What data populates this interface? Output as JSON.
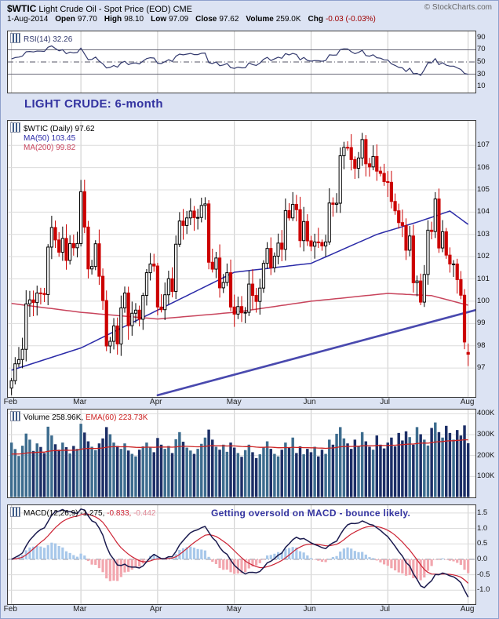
{
  "header": {
    "symbol": "$WTIC",
    "title": "Light Crude Oil - Spot Price (EOD) CME",
    "copyright": "© StockCharts.com",
    "date": "1-Aug-2014",
    "quote": [
      {
        "label": "Open",
        "value": "97.70"
      },
      {
        "label": "High",
        "value": "98.10"
      },
      {
        "label": "Low",
        "value": "97.09"
      },
      {
        "label": "Close",
        "value": "97.62"
      },
      {
        "label": "Volume",
        "value": "259.0K"
      },
      {
        "label": "Chg",
        "value": "-0.03 (-0.03%)",
        "color": "#a00000"
      }
    ]
  },
  "annotations": {
    "title_note": "LIGHT CRUDE: 6-month",
    "macd_note": "Getting oversold on MACD - bounce likely.",
    "color": "#3333a0"
  },
  "panels": {
    "rsi": {
      "legend": "RSI(14) 32.26"
    },
    "price": {
      "legend_symbol": "$WTIC (Daily) 97.62",
      "legend_ma50": "MA(50) 103.45",
      "legend_ma200": "MA(200) 99.82"
    },
    "volume": {
      "legend_vol": "Volume 258.96K,",
      "legend_ema": "EMA(60) 223.73K"
    },
    "macd": {
      "legend": "MACD(12,26,9)",
      "v1": "-1.275,",
      "v2": "-0.833,",
      "v3": "-0.442"
    }
  },
  "months": [
    {
      "label": "Feb",
      "index": 0
    },
    {
      "label": "Mar",
      "index": 19
    },
    {
      "label": "Apr",
      "index": 40
    },
    {
      "label": "May",
      "index": 61
    },
    {
      "label": "Jun",
      "index": 82
    },
    {
      "label": "Jul",
      "index": 103
    },
    {
      "label": "Aug",
      "index": 125
    }
  ],
  "colors": {
    "bg": "#dce3f3",
    "note": "#3333a0",
    "candle_up_stroke": "#000000",
    "candle_up_fill": "#ffffff",
    "candle_down": "#cc0000",
    "ma50": "#2b2ba8",
    "ma200": "#c8445c",
    "trendline": "#4949ae",
    "volume_up": "#3d6c8e",
    "volume_down": "#1c2e66",
    "vol_ema": "#cc2222",
    "macd_line": "#1a1a4e",
    "macd_signal": "#cc2233",
    "hist_pos": "#a8c8ea",
    "hist_neg": "#f2a6ae",
    "rsi_line": "#333a6e",
    "grid": "#dcdcdc",
    "month_grid": "#c9c9c9",
    "level_line": "#555566"
  },
  "chart_data": [
    {
      "name": "rsi",
      "type": "line",
      "params": "RSI(14)",
      "last_value": 32.26,
      "range": [
        0,
        100
      ],
      "levels": [
        70,
        50,
        30
      ],
      "y_ticks": [
        90,
        70,
        50,
        30,
        10
      ],
      "derived_from": "price closes (Wilder RSI-14)"
    },
    {
      "name": "price",
      "type": "candlestick",
      "symbol": "$WTIC",
      "timeframe": "Daily",
      "last_close": 97.62,
      "ylim": [
        95.7,
        108.1
      ],
      "y_ticks": [
        107,
        106,
        105,
        104,
        103,
        102,
        101,
        100,
        99,
        98,
        97
      ],
      "first_open": 96.1,
      "last_ohlc": {
        "open": 97.7,
        "high": 98.1,
        "low": 97.09,
        "close": 97.62
      },
      "closes": [
        96.43,
        97.19,
        97.38,
        97.84,
        99.88,
        100.06,
        99.94,
        100.37,
        100.35,
        100.3,
        102.43,
        103.31,
        102.75,
        102.2,
        102.82,
        101.83,
        102.59,
        102.4,
        102.59,
        104.92,
        103.33,
        101.45,
        101.56,
        102.58,
        101.12,
        100.03,
        97.99,
        98.2,
        98.89,
        98.08,
        99.7,
        100.37,
        98.9,
        99.46,
        99.6,
        99.19,
        100.26,
        101.28,
        101.67,
        101.58,
        99.74,
        99.62,
        100.29,
        101.01,
        100.44,
        102.56,
        103.6,
        103.4,
        103.74,
        104.05,
        103.75,
        103.76,
        104.3,
        104.37,
        101.75,
        101.44,
        101.94,
        100.6,
        100.84,
        101.28,
        99.74,
        99.42,
        99.76,
        99.48,
        99.5,
        100.77,
        100.26,
        99.99,
        100.59,
        101.7,
        102.37,
        101.5,
        102.02,
        102.61,
        102.33,
        104.07,
        103.74,
        104.35,
        104.11,
        102.72,
        103.58,
        102.71,
        102.47,
        102.66,
        102.64,
        102.48,
        102.66,
        104.41,
        104.35,
        104.4,
        106.53,
        106.91,
        106.9,
        106.36,
        105.97,
        106.43,
        107.26,
        106.17,
        106.03,
        106.5,
        105.84,
        105.74,
        105.37,
        105.34,
        104.48,
        104.06,
        103.53,
        103.4,
        102.29,
        102.93,
        100.83,
        100.91,
        99.96,
        101.2,
        103.19,
        103.13,
        104.59,
        102.39,
        103.12,
        102.07,
        101.67,
        101.67,
        100.97,
        100.27,
        98.17,
        97.62
      ],
      "ma50": {
        "label": "MA(50)",
        "last": 103.45,
        "points": [
          [
            0,
            96.9
          ],
          [
            19,
            97.9
          ],
          [
            40,
            99.6
          ],
          [
            61,
            101.3
          ],
          [
            82,
            101.7
          ],
          [
            100,
            103.0
          ],
          [
            112,
            103.6
          ],
          [
            120,
            104.05
          ],
          [
            125,
            103.45
          ]
        ]
      },
      "ma200": {
        "label": "MA(200)",
        "last": 99.82,
        "points": [
          [
            0,
            99.9
          ],
          [
            19,
            99.5
          ],
          [
            40,
            99.2
          ],
          [
            61,
            99.5
          ],
          [
            82,
            100.0
          ],
          [
            103,
            100.35
          ],
          [
            115,
            100.25
          ],
          [
            125,
            99.82
          ]
        ]
      },
      "trendline": {
        "from": [
          40,
          95.78
        ],
        "to": [
          128,
          99.6
        ]
      }
    },
    {
      "name": "volume",
      "type": "bar",
      "last_value_label": "258.96K",
      "ema60_label": "223.73K",
      "ylim": [
        0,
        420
      ],
      "y_ticks": [
        400,
        300,
        200,
        100
      ],
      "values_thousands": [
        262,
        231,
        198,
        247,
        305,
        276,
        222,
        258,
        241,
        212,
        338,
        296,
        254,
        228,
        262,
        240,
        210,
        246,
        232,
        352,
        310,
        268,
        242,
        226,
        258,
        282,
        336,
        302,
        262,
        246,
        232,
        258,
        224,
        208,
        196,
        228,
        244,
        262,
        238,
        216,
        284,
        252,
        232,
        246,
        212,
        278,
        312,
        266,
        238,
        224,
        208,
        232,
        256,
        286,
        324,
        276,
        242,
        228,
        252,
        218,
        262,
        238,
        212,
        194,
        226,
        252,
        216,
        188,
        206,
        242,
        268,
        232,
        208,
        196,
        228,
        262,
        238,
        286,
        212,
        244,
        206,
        232,
        216,
        242,
        196,
        228,
        208,
        276,
        252,
        304,
        336,
        282,
        258,
        232,
        276,
        246,
        312,
        268,
        242,
        228,
        296,
        252,
        234,
        262,
        286,
        244,
        308,
        272,
        316,
        288,
        252,
        336,
        302,
        276,
        248,
        332,
        358,
        312,
        286,
        342,
        308,
        276,
        322,
        296,
        344,
        259
      ]
    },
    {
      "name": "macd",
      "type": "line",
      "params": "MACD(12,26,9)",
      "last_values": [
        -1.275,
        -0.833,
        -0.442
      ],
      "ylim": [
        -1.45,
        1.75
      ],
      "y_ticks": [
        1.5,
        1.0,
        0.5,
        0.0,
        -0.5,
        -1.0
      ],
      "derived_from": "price closes (EMA12-EMA26, signal EMA9)"
    }
  ]
}
